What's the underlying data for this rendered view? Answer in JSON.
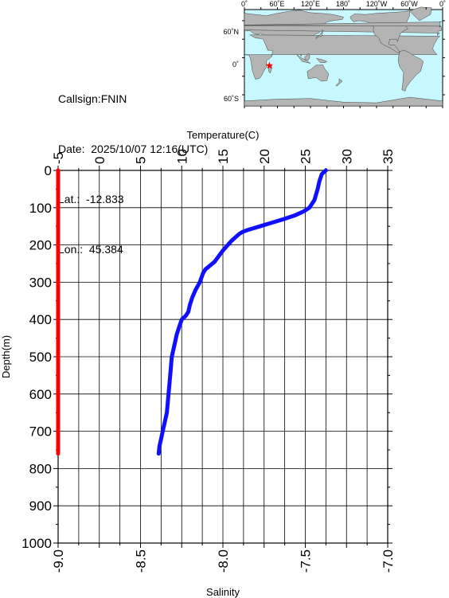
{
  "station": {
    "callsign_label": "Callsign:",
    "callsign": "FNIN",
    "date_label": "Date:",
    "date": "2025/10/07 12:16(UTC)",
    "lat_label": "Lat.:",
    "lat": "-12.833",
    "lon_label": "Lon.:",
    "lon": "45.384"
  },
  "map": {
    "lon_labels": [
      "0˚",
      "60˚E",
      "120˚E",
      "180˚",
      "120˚W",
      "60˚W",
      "0˚"
    ],
    "lat_labels": [
      "60˚N",
      "0˚",
      "60˚S"
    ],
    "ocean_color": "#c8f8ff",
    "land_color": "#b4b4b4",
    "marker_color": "#ff0000",
    "marker_lat": -12.833,
    "marker_lon": 45.384
  },
  "chart_data": {
    "type": "line",
    "xlabel_top": "Temperature(C)",
    "xlabel_bottom": "Salinity",
    "ylabel": "Depth(m)",
    "temperature_ticks": [
      "-5",
      "0",
      "5",
      "10",
      "15",
      "20",
      "25",
      "30",
      "35"
    ],
    "salinity_ticks": [
      "-9.0",
      "-8.5",
      "-8.0",
      "-7.5",
      "-7.0"
    ],
    "depth_ticks": [
      "0",
      "100",
      "200",
      "300",
      "400",
      "500",
      "600",
      "700",
      "800",
      "900",
      "1000"
    ],
    "temperature_range": [
      -5,
      35
    ],
    "salinity_range": [
      -9.0,
      -7.0
    ],
    "depth_range": [
      0,
      1000
    ],
    "grid": true,
    "series": [
      {
        "color": "#1010ff",
        "axis": "temperature",
        "depth": [
          0,
          10,
          30,
          50,
          80,
          100,
          110,
          120,
          130,
          140,
          150,
          160,
          165,
          170,
          180,
          190,
          200,
          215,
          230,
          245,
          258,
          265,
          275,
          300,
          320,
          340,
          360,
          380,
          390,
          400,
          420,
          440,
          460,
          480,
          500,
          550,
          600,
          650,
          680,
          700,
          720,
          740,
          760
        ],
        "values": [
          27.5,
          27.0,
          26.7,
          26.5,
          26.1,
          25.5,
          24.8,
          23.8,
          22.5,
          21.0,
          19.5,
          18.0,
          17.4,
          17.0,
          16.5,
          16.0,
          15.6,
          15.0,
          14.5,
          14.0,
          13.3,
          12.9,
          12.6,
          12.2,
          11.7,
          11.3,
          11.0,
          10.8,
          10.5,
          10.0,
          9.7,
          9.4,
          9.2,
          9.0,
          8.8,
          8.6,
          8.4,
          8.2,
          7.9,
          7.7,
          7.5,
          7.3,
          7.2
        ]
      },
      {
        "color": "#ff0000",
        "axis": "salinity",
        "depth": [
          0,
          760
        ],
        "values": [
          -9.0,
          -9.0
        ]
      }
    ]
  }
}
